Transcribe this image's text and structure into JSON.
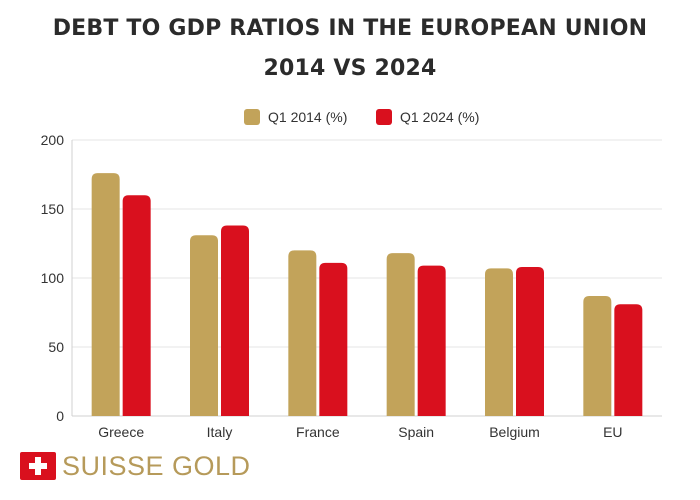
{
  "chart_data": {
    "type": "bar",
    "title": "DEBT TO GDP RATIOS IN THE EUROPEAN UNION",
    "subtitle": "2014 VS 2024",
    "categories": [
      "Greece",
      "Italy",
      "France",
      "Spain",
      "Belgium",
      "EU"
    ],
    "series": [
      {
        "name": "Q1 2014 (%)",
        "color": "#c2a35a",
        "values": [
          176,
          131,
          120,
          118,
          107,
          87
        ]
      },
      {
        "name": "Q1 2024 (%)",
        "color": "#d9101e",
        "values": [
          160,
          138,
          111,
          109,
          108,
          81
        ]
      }
    ],
    "yticks": [
      "0",
      "50",
      "100",
      "150",
      "200"
    ],
    "ylim": [
      0,
      200
    ],
    "xlabel": "",
    "ylabel": "",
    "grid": true,
    "legend": "top-center"
  },
  "brand": {
    "name": "SUISSE GOLD",
    "logo_icon": "swiss-cross-icon",
    "colors": {
      "flag": "#d9101e",
      "text": "#b69a5a"
    }
  }
}
